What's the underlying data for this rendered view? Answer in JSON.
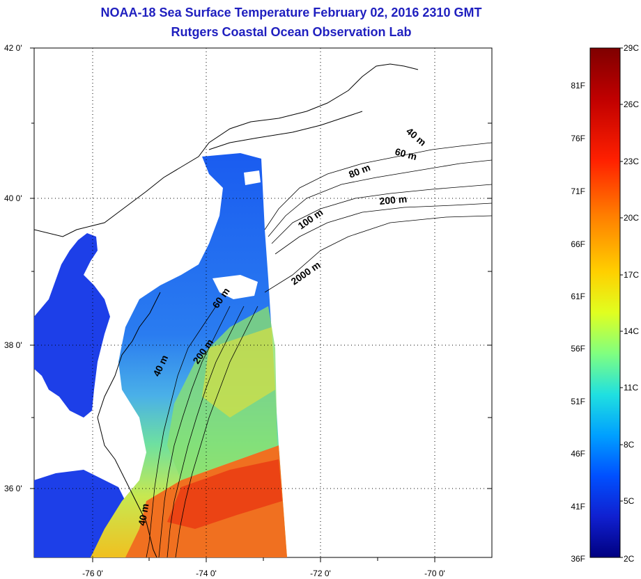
{
  "header": {
    "title": "NOAA-18 Sea Surface Temperature February 02, 2016 2310 GMT",
    "subtitle": "Rutgers Coastal Ocean Observation Lab"
  },
  "map": {
    "lat_ticks": [
      "42 0'",
      "40 0'",
      "38 0'",
      "36 0'"
    ],
    "lon_ticks": [
      "-76 0'",
      "-74 0'",
      "-72 0'",
      "-70 0'"
    ],
    "grid": true,
    "contour_labels": [
      "40 m",
      "60 m",
      "80 m",
      "200 m",
      "100 m",
      "2000 m",
      "60 m",
      "200 m",
      "40 m",
      "40 m"
    ]
  },
  "colorbar": {
    "fahrenheit_labels": [
      "81F",
      "76F",
      "71F",
      "66F",
      "61F",
      "56F",
      "51F",
      "46F",
      "41F",
      "36F"
    ],
    "celsius_labels": [
      "29C",
      "26C",
      "23C",
      "20C",
      "17C",
      "14C",
      "11C",
      "8C",
      "5C",
      "2C"
    ],
    "colors": [
      "#7f0000",
      "#c00000",
      "#ff2000",
      "#ff7f00",
      "#ffd000",
      "#e0ff20",
      "#80ff80",
      "#20e0e0",
      "#00a0ff",
      "#0050ff",
      "#1020d0",
      "#000080"
    ]
  }
}
